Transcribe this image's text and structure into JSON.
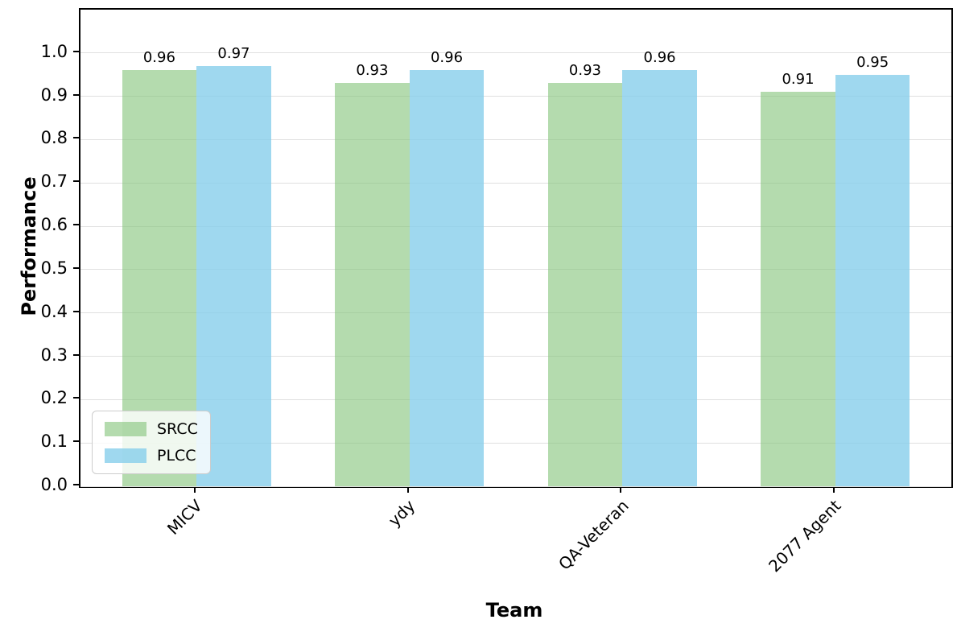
{
  "figure": {
    "background": "#ffffff"
  },
  "chart_data": {
    "type": "bar",
    "title": "",
    "xlabel": "Team",
    "ylabel": "Performance",
    "categories": [
      "MICV",
      "ydy",
      "QA-Veteran",
      "2077 Agent"
    ],
    "series": [
      {
        "name": "SRCC",
        "values": [
          0.96,
          0.93,
          0.93,
          0.91
        ],
        "labels": [
          "0.96",
          "0.93",
          "0.93",
          "0.91"
        ],
        "color": "rgba(134, 197, 124, 0.62)"
      },
      {
        "name": "PLCC",
        "values": [
          0.97,
          0.96,
          0.96,
          0.95
        ],
        "labels": [
          "0.97",
          "0.96",
          "0.96",
          "0.95"
        ],
        "color": "rgba(135, 206, 235, 0.8)"
      }
    ],
    "ylim": [
      0,
      1.1
    ],
    "yticks": [
      "0.0",
      "0.1",
      "0.2",
      "0.3",
      "0.4",
      "0.5",
      "0.6",
      "0.7",
      "0.8",
      "0.9",
      "1.0"
    ],
    "grid": "horizontal",
    "gridline_color": "#e0e0e0",
    "legend_position": "lower-left",
    "bar_group_width": 0.35,
    "x_tick_rotation_deg": 45
  }
}
